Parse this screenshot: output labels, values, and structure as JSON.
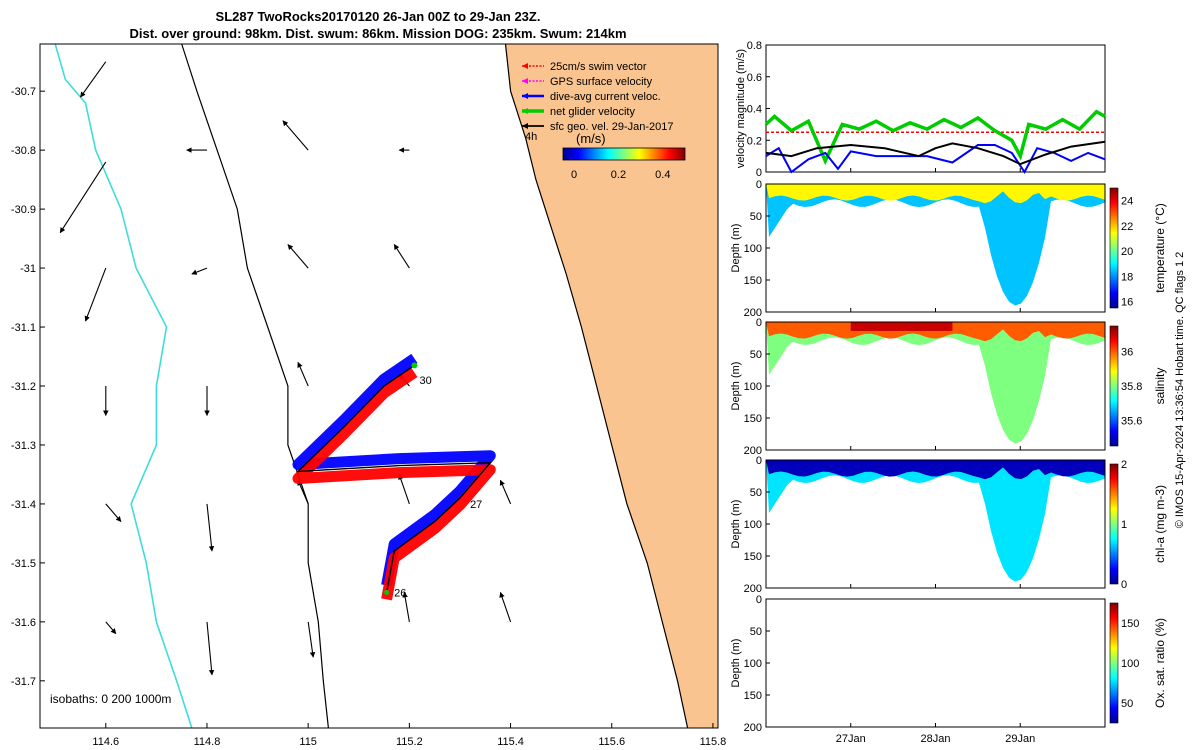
{
  "title": {
    "line1": "SL287 TwoRocks20170120 26-Jan 00Z to 29-Jan 23Z.",
    "line2": "Dist. over ground: 98km. Dist. swum: 86km. Mission DOG: 235km. Swum: 214km"
  },
  "colors": {
    "land": "#f9c48f",
    "coast_line": "#000000",
    "isobath_200": "#000000",
    "isobath_1000": "#3fdcdc",
    "swim_vector": "#ff0000",
    "gps_velocity": "#ff00ff",
    "current_vector": "#0000ff",
    "glider_velocity": "#00cc00",
    "geo_velocity": "#000000"
  },
  "chart_data": [
    {
      "type": "map",
      "name": "track-map",
      "xlim": [
        114.47,
        115.81
      ],
      "ylim": [
        -31.78,
        -30.62
      ],
      "x_ticks": [
        114.6,
        114.8,
        115,
        115.2,
        115.4,
        115.6,
        115.8
      ],
      "x_tick_labels": [
        "114.6",
        "114.8",
        "115",
        "115.2",
        "115.4",
        "115.6",
        "115.8"
      ],
      "y_ticks": [
        -30.7,
        -30.8,
        -30.9,
        -31,
        -31.1,
        -31.2,
        -31.3,
        -31.4,
        -31.5,
        -31.6,
        -31.7
      ],
      "y_tick_labels": [
        "-30.7",
        "-30.8",
        "-30.9",
        "-31",
        "-31.1",
        "-31.2",
        "-31.3",
        "-31.4",
        "-31.5",
        "-31.6",
        "-31.7"
      ],
      "legend": [
        "25cm/s swim vector",
        "GPS surface velocity",
        "dive-avg current veloc.",
        "net glider velocity",
        "sfc geo. vel. 29-Jan-2017"
      ],
      "legend_interval": "4h",
      "colorbar": {
        "label": "(m/s)",
        "ticks": [
          "0",
          "0.2",
          "0.4"
        ],
        "range": [
          -0.05,
          0.5
        ]
      },
      "isobaths_label": "isobaths: 0   200  1000m",
      "day_labels": [
        {
          "text": "26",
          "lon": 115.17,
          "lat": -31.55
        },
        {
          "text": "27",
          "lon": 115.32,
          "lat": -31.4
        },
        {
          "text": "30",
          "lon": 115.22,
          "lat": -31.19
        }
      ],
      "glider_track": [
        [
          115.155,
          -31.55
        ],
        [
          115.17,
          -31.48
        ],
        [
          115.25,
          -31.43
        ],
        [
          115.3,
          -31.39
        ],
        [
          115.36,
          -31.33
        ],
        [
          115.18,
          -31.335
        ],
        [
          114.98,
          -31.345
        ],
        [
          115.07,
          -31.27
        ],
        [
          115.15,
          -31.2
        ],
        [
          115.21,
          -31.165
        ]
      ],
      "coastline": [
        [
          115.39,
          -30.62
        ],
        [
          115.4,
          -30.7
        ],
        [
          115.43,
          -30.78
        ],
        [
          115.45,
          -30.85
        ],
        [
          115.48,
          -30.93
        ],
        [
          115.51,
          -31.01
        ],
        [
          115.54,
          -31.1
        ],
        [
          115.57,
          -31.2
        ],
        [
          115.6,
          -31.3
        ],
        [
          115.63,
          -31.4
        ],
        [
          115.67,
          -31.5
        ],
        [
          115.7,
          -31.6
        ],
        [
          115.73,
          -31.7
        ],
        [
          115.75,
          -31.78
        ]
      ],
      "isobath_200": [
        [
          114.75,
          -30.62
        ],
        [
          114.78,
          -30.7
        ],
        [
          114.82,
          -30.8
        ],
        [
          114.86,
          -30.9
        ],
        [
          114.88,
          -31.0
        ],
        [
          114.92,
          -31.1
        ],
        [
          114.96,
          -31.2
        ],
        [
          114.96,
          -31.3
        ],
        [
          115.0,
          -31.4
        ],
        [
          115.0,
          -31.5
        ],
        [
          115.02,
          -31.6
        ],
        [
          115.03,
          -31.7
        ],
        [
          115.04,
          -31.78
        ]
      ],
      "isobath_1000": [
        [
          114.5,
          -30.62
        ],
        [
          114.52,
          -30.68
        ],
        [
          114.56,
          -30.72
        ],
        [
          114.58,
          -30.8
        ],
        [
          114.63,
          -30.9
        ],
        [
          114.66,
          -31.0
        ],
        [
          114.72,
          -31.1
        ],
        [
          114.7,
          -31.2
        ],
        [
          114.7,
          -31.3
        ],
        [
          114.65,
          -31.4
        ],
        [
          114.68,
          -31.5
        ],
        [
          114.7,
          -31.6
        ],
        [
          114.74,
          -31.7
        ],
        [
          114.77,
          -31.78
        ]
      ],
      "current_arrows": [
        [
          114.6,
          -30.65,
          -0.05,
          -0.06
        ],
        [
          114.6,
          -30.82,
          -0.09,
          -0.12
        ],
        [
          114.6,
          -31.0,
          -0.04,
          -0.09
        ],
        [
          114.6,
          -31.2,
          0.0,
          -0.05
        ],
        [
          114.6,
          -31.4,
          0.03,
          -0.03
        ],
        [
          114.6,
          -31.6,
          0.02,
          -0.02
        ],
        [
          114.8,
          -30.8,
          -0.04,
          0.0
        ],
        [
          114.8,
          -31.0,
          -0.03,
          -0.01
        ],
        [
          114.8,
          -31.2,
          0.0,
          -0.05
        ],
        [
          114.8,
          -31.4,
          0.01,
          -0.08
        ],
        [
          114.8,
          -31.6,
          0.01,
          -0.09
        ],
        [
          115.0,
          -30.8,
          -0.05,
          0.05
        ],
        [
          115.0,
          -31.0,
          -0.04,
          0.04
        ],
        [
          115.0,
          -31.2,
          -0.02,
          0.04
        ],
        [
          115.0,
          -31.4,
          -0.02,
          0.04
        ],
        [
          115.0,
          -31.6,
          0.01,
          -0.06
        ],
        [
          115.2,
          -30.8,
          -0.02,
          0.0
        ],
        [
          115.2,
          -31.0,
          -0.03,
          0.04
        ],
        [
          115.2,
          -31.2,
          -0.02,
          0.02
        ],
        [
          115.2,
          -31.4,
          -0.02,
          0.05
        ],
        [
          115.2,
          -31.6,
          -0.01,
          0.05
        ],
        [
          115.4,
          -31.4,
          -0.02,
          0.04
        ],
        [
          115.4,
          -31.6,
          -0.02,
          0.05
        ]
      ]
    },
    {
      "type": "line",
      "name": "velocity-panel",
      "ylabel": "velocity magnitude (m/s)",
      "xlim": [
        26,
        30
      ],
      "ylim": [
        0,
        0.8
      ],
      "y_ticks": [
        "0",
        "0.2",
        "0.4",
        "0.6",
        "0.8"
      ],
      "series": [
        {
          "name": "swim vector",
          "color": "#ff0000",
          "x": [
            26,
            27,
            28,
            29,
            30
          ],
          "values": [
            0.25,
            0.25,
            0.25,
            0.25,
            0.25
          ]
        },
        {
          "name": "net glider velocity",
          "color": "#00cc00",
          "x": [
            26.0,
            26.1,
            26.3,
            26.5,
            26.7,
            26.9,
            27.1,
            27.3,
            27.5,
            27.7,
            27.9,
            28.1,
            28.3,
            28.5,
            28.7,
            28.9,
            29.0,
            29.1,
            29.3,
            29.5,
            29.7,
            29.9,
            30.0
          ],
          "values": [
            0.3,
            0.35,
            0.26,
            0.32,
            0.07,
            0.3,
            0.27,
            0.32,
            0.26,
            0.31,
            0.27,
            0.33,
            0.28,
            0.34,
            0.26,
            0.2,
            0.1,
            0.3,
            0.27,
            0.33,
            0.27,
            0.38,
            0.35
          ]
        },
        {
          "name": "dive-avg current",
          "color": "#0000ff",
          "x": [
            26.0,
            26.15,
            26.3,
            26.5,
            26.7,
            26.85,
            27.0,
            27.3,
            27.6,
            27.9,
            28.2,
            28.5,
            28.7,
            28.9,
            29.05,
            29.2,
            29.4,
            29.6,
            29.8,
            30.0
          ],
          "values": [
            0.1,
            0.15,
            0.0,
            0.08,
            0.12,
            0.02,
            0.13,
            0.1,
            0.1,
            0.1,
            0.06,
            0.17,
            0.17,
            0.12,
            0.0,
            0.15,
            0.12,
            0.07,
            0.12,
            0.08
          ]
        },
        {
          "name": "sfc geo. vel.",
          "color": "#000000",
          "x": [
            26.0,
            26.3,
            26.6,
            27.0,
            27.4,
            27.8,
            28.0,
            28.2,
            28.5,
            28.8,
            29.0,
            29.3,
            29.6,
            30.0
          ],
          "values": [
            0.12,
            0.1,
            0.15,
            0.17,
            0.15,
            0.1,
            0.15,
            0.18,
            0.15,
            0.1,
            0.05,
            0.11,
            0.16,
            0.19
          ]
        }
      ]
    },
    {
      "type": "heatmap",
      "name": "temperature-section",
      "ylabel": "Depth (m)",
      "cbar_label": "temperature (°C)",
      "y_ticks": [
        "0",
        "50",
        "100",
        "150",
        "200"
      ],
      "ylim": [
        0,
        200
      ],
      "clim": [
        15.5,
        25
      ],
      "cbar_ticks": [
        "24",
        "22",
        "20",
        "18",
        "16"
      ],
      "cbar_tick_values": [
        24,
        22,
        20,
        18,
        16
      ],
      "surface_value": 21.5,
      "deep_value": 18.5
    },
    {
      "type": "heatmap",
      "name": "salinity-section",
      "ylabel": "Depth (m)",
      "cbar_label": "salinity",
      "y_ticks": [
        "0",
        "50",
        "100",
        "150",
        "200"
      ],
      "ylim": [
        0,
        200
      ],
      "clim": [
        35.45,
        36.15
      ],
      "cbar_ticks": [
        "36",
        "35.8",
        "35.6"
      ],
      "cbar_tick_values": [
        36,
        35.8,
        35.6
      ],
      "surface_value": 36.0,
      "deep_value": 35.8
    },
    {
      "type": "heatmap",
      "name": "chla-section",
      "ylabel": "Depth (m)",
      "cbar_label": "chl-a (mg m-3)",
      "y_ticks": [
        "0",
        "50",
        "100",
        "150",
        "200"
      ],
      "ylim": [
        0,
        200
      ],
      "clim": [
        0,
        2
      ],
      "cbar_ticks": [
        "2",
        "1",
        "0"
      ],
      "cbar_tick_values": [
        2,
        1,
        0
      ],
      "surface_value": 0.1,
      "deep_value": 0.7
    },
    {
      "type": "heatmap",
      "name": "oxygen-section",
      "ylabel": "Depth (m)",
      "cbar_label": "Ox. sat. ratio (%)",
      "y_ticks": [
        "0",
        "50",
        "100",
        "150",
        "200"
      ],
      "ylim": [
        0,
        200
      ],
      "clim": [
        25,
        175
      ],
      "cbar_ticks": [
        "150",
        "100",
        "50"
      ],
      "cbar_tick_values": [
        150,
        100,
        50
      ],
      "surface_value": null,
      "deep_value": null
    }
  ],
  "time_axis": {
    "ticks": [
      27,
      28,
      29
    ],
    "labels": [
      "27Jan",
      "28Jan",
      "29Jan"
    ]
  },
  "footer": "© IMOS 15-Apr-2024 13:36:54 Hobart time. QC flags 1  2"
}
